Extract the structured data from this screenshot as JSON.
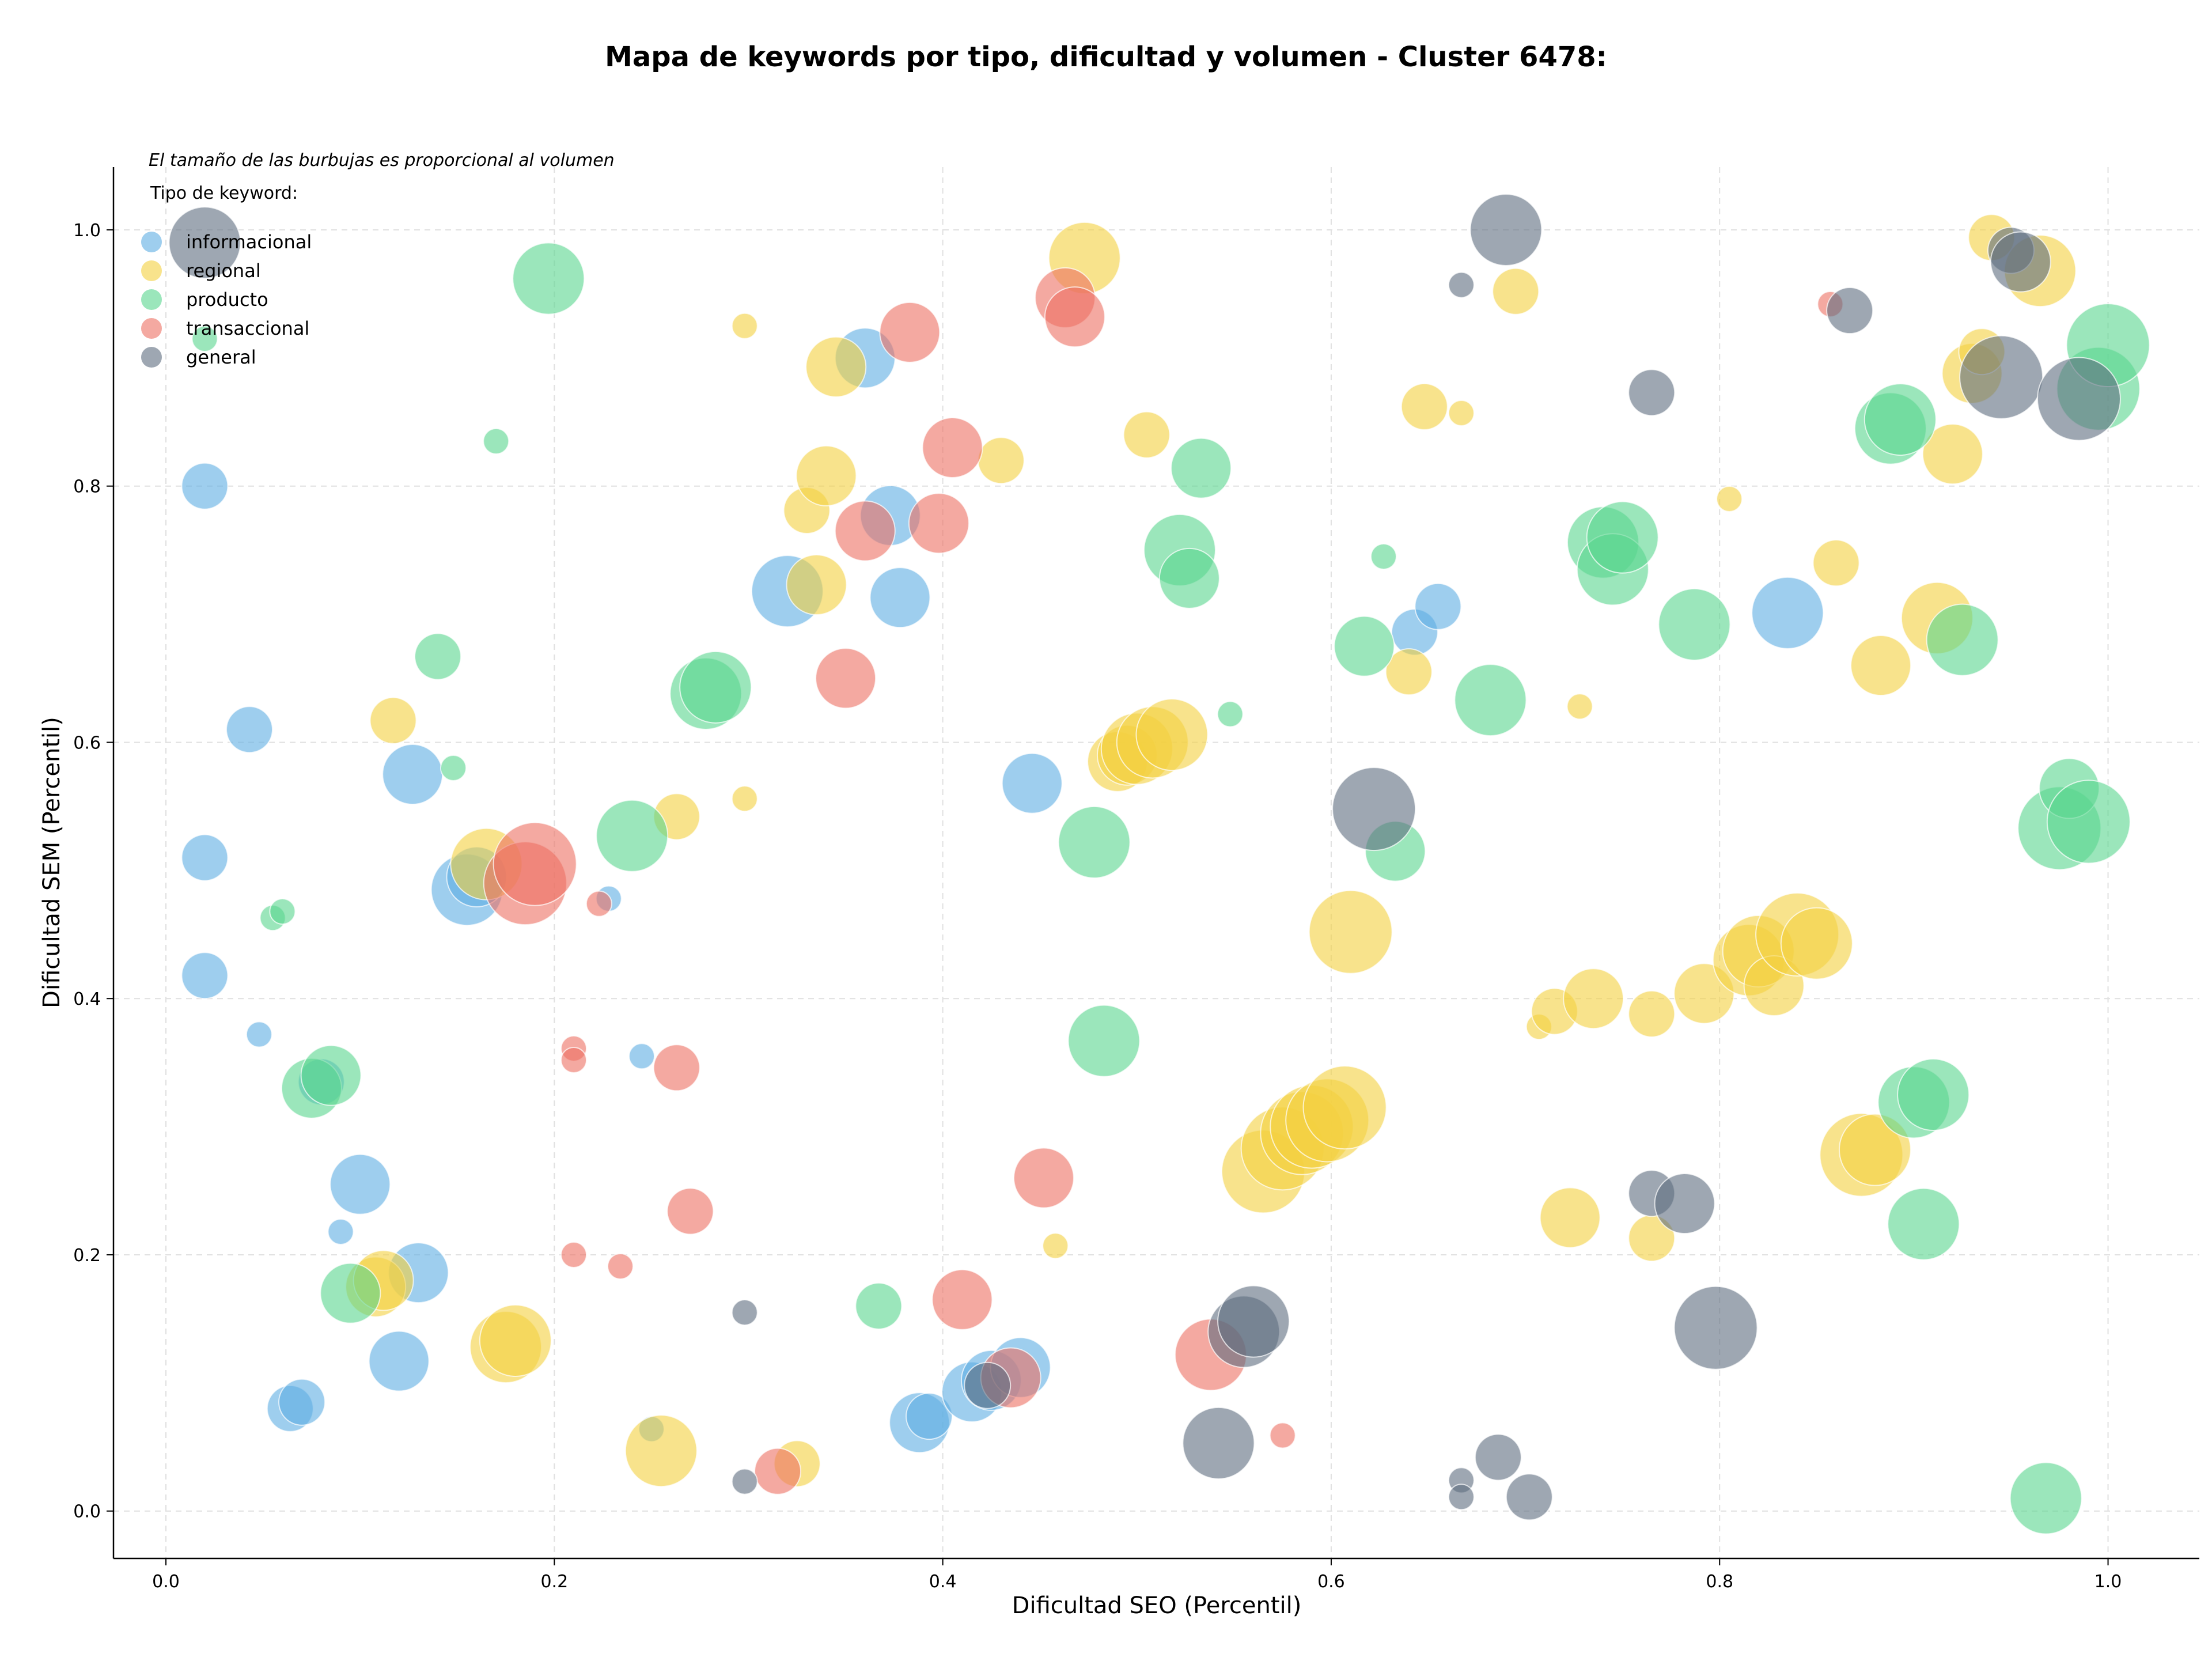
{
  "chart_data": {
    "type": "scatter",
    "title": "Mapa de keywords por tipo, dificultad y volumen - Cluster 6478:",
    "xlabel": "Dificultad SEO (Percentil)",
    "ylabel": "Dificultad SEM (Percentil)",
    "xlim": [
      -0.027,
      1.047
    ],
    "ylim": [
      -0.037,
      1.049
    ],
    "xticks": [
      0.0,
      0.2,
      0.4,
      0.6,
      0.8,
      1.0
    ],
    "xtick_labels": [
      "0.0",
      "0.2",
      "0.4",
      "0.6",
      "0.8",
      "1.0"
    ],
    "yticks": [
      0.0,
      0.2,
      0.4,
      0.6,
      0.8,
      1.0
    ],
    "ytick_labels": [
      "0.0",
      "0.2",
      "0.4",
      "0.6",
      "0.8",
      "1.0"
    ],
    "grid": true,
    "annotation": "El tamaño de las burbujas es proporcional al volumen",
    "legend_title": "Tipo de keyword:",
    "legend_position": "top-left",
    "size_encoding": "volume",
    "series": [
      {
        "name": "informacional",
        "color": "#5dade2",
        "points": [
          [
            0.02,
            0.8,
            2
          ],
          [
            0.02,
            0.418,
            2
          ],
          [
            0.02,
            0.51,
            2
          ],
          [
            0.043,
            0.61,
            2
          ],
          [
            0.048,
            0.372,
            1
          ],
          [
            0.1,
            0.255,
            3
          ],
          [
            0.09,
            0.218,
            1
          ],
          [
            0.13,
            0.186,
            3
          ],
          [
            0.12,
            0.117,
            3
          ],
          [
            0.064,
            0.08,
            2
          ],
          [
            0.07,
            0.085,
            2
          ],
          [
            0.127,
            0.575,
            3
          ],
          [
            0.155,
            0.485,
            4
          ],
          [
            0.16,
            0.495,
            3
          ],
          [
            0.228,
            0.478,
            1
          ],
          [
            0.245,
            0.355,
            1
          ],
          [
            0.25,
            0.064,
            1
          ],
          [
            0.32,
            0.718,
            4
          ],
          [
            0.36,
            0.9,
            3
          ],
          [
            0.373,
            0.777,
            3
          ],
          [
            0.378,
            0.713,
            3
          ],
          [
            0.388,
            0.069,
            3
          ],
          [
            0.393,
            0.074,
            2
          ],
          [
            0.415,
            0.093,
            3
          ],
          [
            0.425,
            0.102,
            3
          ],
          [
            0.44,
            0.112,
            3
          ],
          [
            0.446,
            0.568,
            3
          ],
          [
            0.643,
            0.686,
            2
          ],
          [
            0.655,
            0.706,
            2
          ],
          [
            0.835,
            0.701,
            4
          ],
          [
            0.08,
            0.335,
            2
          ]
        ]
      },
      {
        "name": "regional",
        "color": "#f4d03f",
        "points": [
          [
            0.117,
            0.617,
            2
          ],
          [
            0.108,
            0.175,
            3
          ],
          [
            0.112,
            0.18,
            3
          ],
          [
            0.175,
            0.128,
            4
          ],
          [
            0.18,
            0.133,
            4
          ],
          [
            0.165,
            0.505,
            4
          ],
          [
            0.263,
            0.542,
            2
          ],
          [
            0.255,
            0.047,
            4
          ],
          [
            0.298,
            0.925,
            1
          ],
          [
            0.298,
            0.556,
            1
          ],
          [
            0.325,
            0.037,
            2
          ],
          [
            0.33,
            0.781,
            2
          ],
          [
            0.335,
            0.723,
            3
          ],
          [
            0.34,
            0.808,
            3
          ],
          [
            0.345,
            0.893,
            3
          ],
          [
            0.43,
            0.82,
            2
          ],
          [
            0.458,
            0.207,
            1
          ],
          [
            0.473,
            0.978,
            4
          ],
          [
            0.505,
            0.84,
            2
          ],
          [
            0.49,
            0.585,
            3
          ],
          [
            0.495,
            0.59,
            3
          ],
          [
            0.5,
            0.595,
            4
          ],
          [
            0.508,
            0.6,
            4
          ],
          [
            0.518,
            0.606,
            4
          ],
          [
            0.565,
            0.265,
            5
          ],
          [
            0.575,
            0.283,
            5
          ],
          [
            0.585,
            0.295,
            5
          ],
          [
            0.59,
            0.3,
            5
          ],
          [
            0.598,
            0.305,
            5
          ],
          [
            0.607,
            0.315,
            5
          ],
          [
            0.61,
            0.452,
            5
          ],
          [
            0.64,
            0.655,
            2
          ],
          [
            0.648,
            0.862,
            2
          ],
          [
            0.667,
            0.857,
            1
          ],
          [
            0.695,
            0.952,
            2
          ],
          [
            0.707,
            0.378,
            1
          ],
          [
            0.715,
            0.39,
            2
          ],
          [
            0.728,
            0.628,
            1
          ],
          [
            0.735,
            0.4,
            3
          ],
          [
            0.723,
            0.229,
            3
          ],
          [
            0.765,
            0.388,
            2
          ],
          [
            0.765,
            0.213,
            2
          ],
          [
            0.792,
            0.404,
            3
          ],
          [
            0.805,
            0.79,
            1
          ],
          [
            0.815,
            0.43,
            4
          ],
          [
            0.82,
            0.437,
            4
          ],
          [
            0.828,
            0.41,
            3
          ],
          [
            0.84,
            0.45,
            5
          ],
          [
            0.85,
            0.443,
            4
          ],
          [
            0.86,
            0.74,
            2
          ],
          [
            0.873,
            0.278,
            5
          ],
          [
            0.88,
            0.282,
            4
          ],
          [
            0.883,
            0.66,
            3
          ],
          [
            0.912,
            0.697,
            4
          ],
          [
            0.92,
            0.825,
            3
          ],
          [
            0.93,
            0.888,
            3
          ],
          [
            0.935,
            0.905,
            2
          ],
          [
            0.94,
            0.994,
            2
          ],
          [
            0.965,
            0.968,
            4
          ]
        ]
      },
      {
        "name": "producto",
        "color": "#58d68d",
        "points": [
          [
            0.02,
            0.915,
            1
          ],
          [
            0.075,
            0.33,
            3
          ],
          [
            0.085,
            0.34,
            3
          ],
          [
            0.055,
            0.463,
            1
          ],
          [
            0.06,
            0.468,
            1
          ],
          [
            0.095,
            0.17,
            3
          ],
          [
            0.17,
            0.835,
            1
          ],
          [
            0.14,
            0.667,
            2
          ],
          [
            0.148,
            0.58,
            1
          ],
          [
            0.197,
            0.962,
            4
          ],
          [
            0.24,
            0.527,
            4
          ],
          [
            0.278,
            0.638,
            4
          ],
          [
            0.283,
            0.643,
            4
          ],
          [
            0.367,
            0.16,
            2
          ],
          [
            0.478,
            0.522,
            4
          ],
          [
            0.483,
            0.367,
            4
          ],
          [
            0.522,
            0.75,
            4
          ],
          [
            0.527,
            0.728,
            3
          ],
          [
            0.533,
            0.814,
            3
          ],
          [
            0.548,
            0.622,
            1
          ],
          [
            0.617,
            0.675,
            3
          ],
          [
            0.627,
            0.745,
            1
          ],
          [
            0.633,
            0.515,
            3
          ],
          [
            0.682,
            0.633,
            4
          ],
          [
            0.74,
            0.756,
            4
          ],
          [
            0.745,
            0.735,
            4
          ],
          [
            0.75,
            0.76,
            4
          ],
          [
            0.787,
            0.692,
            4
          ],
          [
            0.888,
            0.845,
            4
          ],
          [
            0.893,
            0.852,
            4
          ],
          [
            0.9,
            0.319,
            4
          ],
          [
            0.91,
            0.325,
            4
          ],
          [
            0.905,
            0.224,
            4
          ],
          [
            0.925,
            0.68,
            4
          ],
          [
            0.968,
            0.01,
            4
          ],
          [
            0.975,
            0.533,
            5
          ],
          [
            0.98,
            0.564,
            3
          ],
          [
            0.99,
            0.538,
            5
          ],
          [
            0.995,
            0.876,
            5
          ],
          [
            1.0,
            0.91,
            5
          ]
        ]
      },
      {
        "name": "transaccional",
        "color": "#ec7063",
        "points": [
          [
            0.185,
            0.49,
            5
          ],
          [
            0.19,
            0.505,
            5
          ],
          [
            0.21,
            0.361,
            1
          ],
          [
            0.21,
            0.352,
            1
          ],
          [
            0.21,
            0.2,
            1
          ],
          [
            0.223,
            0.474,
            1
          ],
          [
            0.234,
            0.191,
            1
          ],
          [
            0.263,
            0.346,
            2
          ],
          [
            0.27,
            0.234,
            2
          ],
          [
            0.315,
            0.031,
            2
          ],
          [
            0.35,
            0.65,
            3
          ],
          [
            0.36,
            0.765,
            3
          ],
          [
            0.383,
            0.92,
            3
          ],
          [
            0.398,
            0.771,
            3
          ],
          [
            0.405,
            0.83,
            3
          ],
          [
            0.41,
            0.165,
            3
          ],
          [
            0.435,
            0.104,
            3
          ],
          [
            0.452,
            0.26,
            3
          ],
          [
            0.463,
            0.947,
            3
          ],
          [
            0.468,
            0.932,
            3
          ],
          [
            0.538,
            0.122,
            4
          ],
          [
            0.575,
            0.059,
            1
          ],
          [
            0.857,
            0.942,
            1
          ]
        ]
      },
      {
        "name": "general",
        "color": "#5d6d7e",
        "points": [
          [
            0.02,
            0.99,
            4
          ],
          [
            0.298,
            0.155,
            1
          ],
          [
            0.298,
            0.023,
            1
          ],
          [
            0.423,
            0.098,
            2
          ],
          [
            0.542,
            0.053,
            4
          ],
          [
            0.555,
            0.14,
            4
          ],
          [
            0.56,
            0.148,
            4
          ],
          [
            0.622,
            0.548,
            5
          ],
          [
            0.667,
            0.957,
            1
          ],
          [
            0.667,
            0.024,
            1
          ],
          [
            0.667,
            0.011,
            1
          ],
          [
            0.686,
            0.042,
            2
          ],
          [
            0.69,
            1.0,
            4
          ],
          [
            0.702,
            0.011,
            2
          ],
          [
            0.765,
            0.873,
            2
          ],
          [
            0.765,
            0.248,
            2
          ],
          [
            0.782,
            0.24,
            3
          ],
          [
            0.798,
            0.143,
            5
          ],
          [
            0.867,
            0.937,
            2
          ],
          [
            0.945,
            0.885,
            5
          ],
          [
            0.95,
            0.984,
            2
          ],
          [
            0.955,
            0.975,
            3
          ],
          [
            0.985,
            0.868,
            5
          ]
        ]
      }
    ]
  }
}
